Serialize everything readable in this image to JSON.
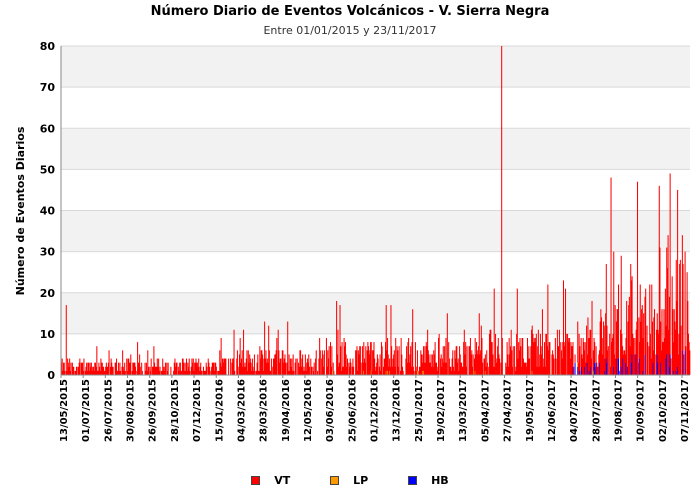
{
  "chart_data": {
    "type": "bar",
    "stacked": true,
    "title": "Número Diario de Eventos Volcánicos -  V. Sierra Negra",
    "subtitle": "Entre 01/01/2015 y 23/11/2017",
    "xlabel": "",
    "ylabel": "Número de Eventos Diarios",
    "ylim": [
      0,
      80
    ],
    "yticks": [
      0,
      10,
      20,
      30,
      40,
      50,
      60,
      70,
      80
    ],
    "grid": true,
    "legend_position": "bottom",
    "x_start": "2015-05-13",
    "x_end": "2017-11-23",
    "x_tick_labels": [
      "13/05/2015",
      "01/07/2015",
      "26/07/2015",
      "30/08/2015",
      "26/09/2015",
      "28/10/2015",
      "07/12/2015",
      "15/01/2016",
      "04/03/2016",
      "28/03/2016",
      "19/04/2016",
      "12/05/2016",
      "03/06/2016",
      "25/06/2016",
      "01/12/2016",
      "13/12/2016",
      "25/01/2017",
      "19/02/2017",
      "13/03/2017",
      "05/04/2017",
      "27/04/2017",
      "19/05/2017",
      "12/06/2017",
      "04/07/2017",
      "28/07/2017",
      "19/08/2017",
      "10/09/2017",
      "02/10/2017",
      "07/11/2017"
    ],
    "series": [
      {
        "name": "VT",
        "color": "#ff0000"
      },
      {
        "name": "LP",
        "color": "#ff9900"
      },
      {
        "name": "HB",
        "color": "#0000ff"
      }
    ],
    "notable_points": [
      {
        "date": "2015-05-20",
        "VT": 17
      },
      {
        "date": "2016-03-07",
        "VT": 13
      },
      {
        "date": "2017-02-19",
        "VT": 80
      },
      {
        "date": "2017-07-30",
        "VT": 48
      },
      {
        "date": "2017-09-07",
        "VT": 47
      },
      {
        "date": "2017-10-09",
        "VT": 46
      },
      {
        "date": "2017-10-25",
        "VT": 44
      },
      {
        "date": "2017-11-05",
        "VT": 43
      }
    ]
  }
}
